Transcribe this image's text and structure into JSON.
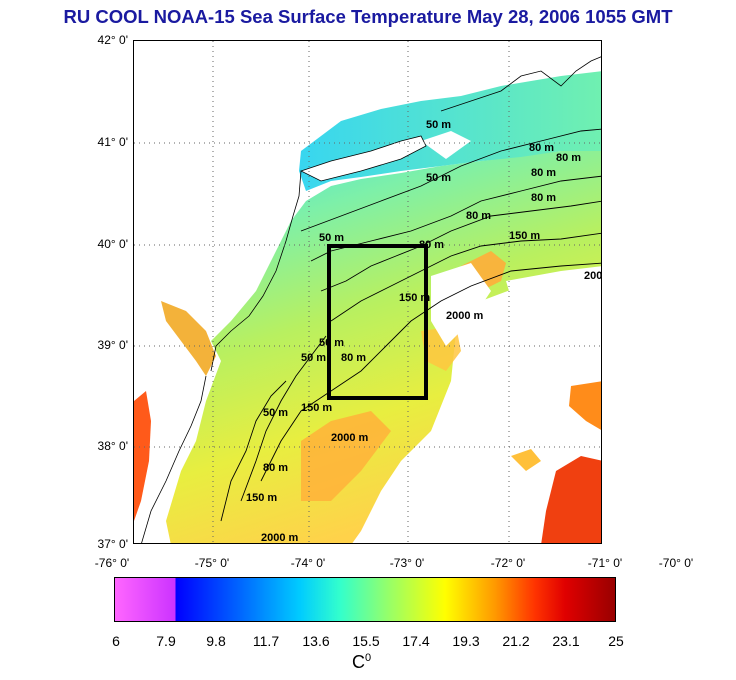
{
  "title": "RU COOL  NOAA-15 Sea Surface Temperature May 28, 2006 1055 GMT",
  "latitude_ticks": [
    "42° 0'",
    "41° 0'",
    "40° 0'",
    "39° 0'",
    "38° 0'",
    "37° 0'"
  ],
  "longitude_ticks": [
    "-76° 0'",
    "-75° 0'",
    "-74° 0'",
    "-73° 0'",
    "-72° 0'",
    "-71° 0'",
    "-70° 0'"
  ],
  "contour_labels": {
    "c1": "50 m",
    "c2": "50 m",
    "c3": "80 m",
    "c4": "80 m",
    "c5": "80 m",
    "c6": "80 m",
    "c7": "150 m",
    "c8": "150 m",
    "c9": "2000 m",
    "c10": "200",
    "c11": "50 m",
    "c12": "50 m",
    "c13": "50 m",
    "c14": "80 m",
    "c15": "150 m",
    "c16": "2000 m",
    "c17": "80 m",
    "c18": "50 m",
    "c19": "80 m",
    "c20": "150 m",
    "c21": "2000 m",
    "c22": "80 m"
  },
  "colorbar": {
    "ticks": [
      "6",
      "7.9",
      "9.8",
      "11.7",
      "13.6",
      "15.5",
      "17.4",
      "19.3",
      "21.2",
      "23.1",
      "25"
    ],
    "unit_base": "C",
    "unit_sup": "0"
  },
  "colors": {
    "title": "#1a1aa0",
    "land": "#ffffff",
    "cloud": "#ffffff",
    "study_box": "#000000"
  }
}
